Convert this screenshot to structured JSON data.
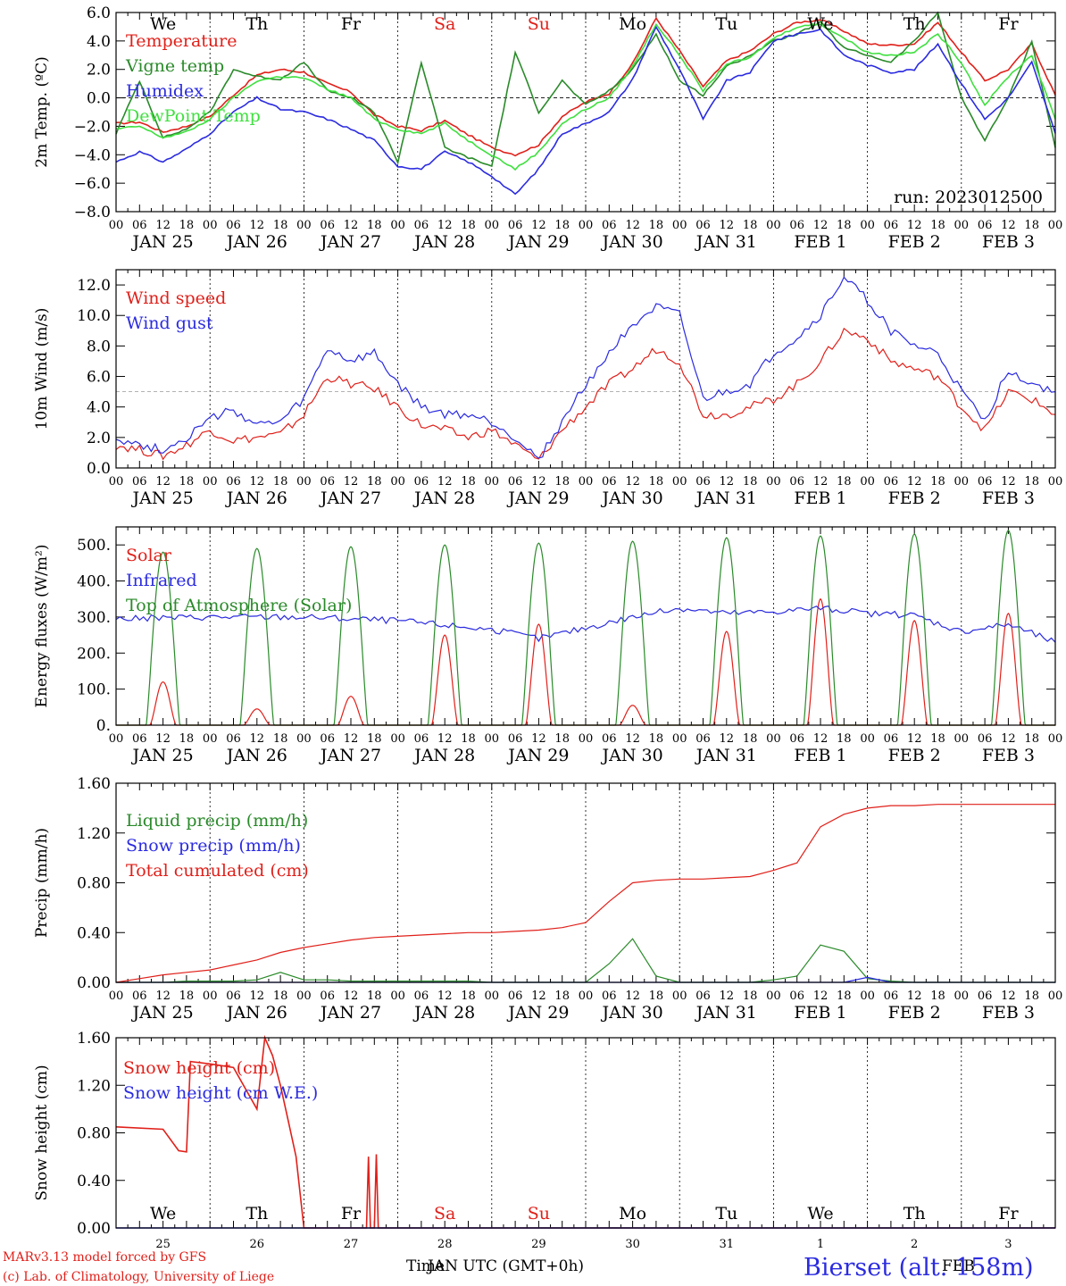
{
  "axis": {
    "hour_labels": [
      "00",
      "06",
      "12",
      "18"
    ],
    "final_hour_label": "00",
    "date_labels": [
      "JAN 25",
      "JAN 26",
      "JAN 27",
      "JAN 28",
      "JAN 29",
      "JAN 30",
      "JAN 31",
      "FEB  1",
      "FEB  2",
      "FEB  3"
    ],
    "weekday_labels": [
      "We",
      "Th",
      "Fr",
      "Sa",
      "Su",
      "Mo",
      "Tu",
      "We",
      "Th",
      "Fr"
    ],
    "weekend_color": "#e0201a",
    "weekday_color": "#000000",
    "day_numbers": [
      "25",
      "26",
      "27",
      "28",
      "29",
      "30",
      "31",
      "1",
      "2",
      "3"
    ],
    "bottom_xlabel": "Time",
    "bottom_xlabel_overlap": "JAN UTC (GMT+0h)",
    "bottom_month_feb": "FEB"
  },
  "footer": {
    "credit_line1": "MARv3.13 model forced by GFS",
    "credit_line2": "(c) Lab. of Climatology, University of Liege",
    "station": "Bierset (alt. 158m)"
  },
  "chart_data": [
    {
      "type": "line",
      "ylabel": "2m Temp. (ºC)",
      "ylim": [
        -8,
        6
      ],
      "yticks": [
        "6.0",
        "4.0",
        "2.0",
        "0.0",
        "−2.0",
        "−4.0",
        "−6.0",
        "−8.0"
      ],
      "reference_line": 0,
      "annotation": "run: 2023012500",
      "x_hours": [
        0,
        6,
        12,
        18,
        24,
        30,
        36,
        42,
        48,
        54,
        60,
        66,
        72,
        78,
        84,
        90,
        96,
        102,
        108,
        114,
        120,
        126,
        132,
        138,
        144,
        150,
        156,
        162,
        168,
        174,
        180,
        186,
        192,
        198,
        204,
        210,
        216,
        222,
        228,
        234,
        240
      ],
      "series": [
        {
          "name": "Temperature",
          "color": "#e0201a",
          "values": [
            -1.8,
            -1.7,
            -2.4,
            -2.0,
            -1.3,
            0.2,
            1.6,
            2.0,
            1.8,
            1.0,
            0.4,
            -1.2,
            -2.0,
            -2.3,
            -1.6,
            -2.6,
            -3.5,
            -4.0,
            -3.3,
            -1.3,
            -0.3,
            0.3,
            2.4,
            5.6,
            3.3,
            0.8,
            2.6,
            3.3,
            4.5,
            5.3,
            5.5,
            4.7,
            3.8,
            3.7,
            3.8,
            5.3,
            3.2,
            1.2,
            2.0,
            3.8,
            0.2
          ]
        },
        {
          "name": "Vigne temp",
          "color": "#2a8a2a",
          "values": [
            -2.5,
            1.2,
            -2.8,
            -2.2,
            -1.0,
            2.0,
            1.5,
            1.3,
            2.5,
            0.5,
            0.0,
            -1.0,
            -4.5,
            2.5,
            -3.5,
            -4.2,
            -4.8,
            3.2,
            -1.0,
            1.2,
            -0.5,
            0.5,
            2.0,
            4.5,
            1.2,
            0.2,
            2.2,
            3.0,
            4.0,
            4.5,
            5.3,
            3.5,
            3.0,
            2.5,
            4.0,
            6.0,
            0.0,
            -3.0,
            0.0,
            4.0,
            -3.5
          ]
        },
        {
          "name": "Humidex",
          "color": "#2b2be0",
          "values": [
            -4.5,
            -3.8,
            -4.5,
            -3.6,
            -2.5,
            -1.0,
            0.0,
            -0.8,
            -1.0,
            -1.5,
            -2.2,
            -3.0,
            -4.8,
            -5.0,
            -3.8,
            -4.5,
            -5.5,
            -6.8,
            -5.0,
            -2.5,
            -1.8,
            -1.0,
            1.3,
            5.0,
            2.0,
            -1.5,
            1.2,
            1.8,
            4.0,
            4.5,
            4.8,
            3.0,
            2.3,
            1.8,
            2.0,
            3.8,
            1.0,
            -1.5,
            0.0,
            2.5,
            -2.5
          ]
        },
        {
          "name": "DewPoint Temp",
          "color": "#3fe03f",
          "values": [
            -2.2,
            -2.0,
            -2.8,
            -2.4,
            -1.5,
            0.0,
            1.2,
            1.5,
            1.4,
            0.6,
            0.0,
            -1.5,
            -2.2,
            -2.5,
            -1.8,
            -3.0,
            -4.0,
            -5.0,
            -3.8,
            -1.8,
            -0.8,
            0.0,
            2.2,
            5.2,
            3.0,
            0.5,
            2.4,
            2.8,
            4.2,
            5.0,
            5.2,
            4.2,
            3.2,
            3.0,
            3.2,
            4.5,
            2.5,
            -0.5,
            1.5,
            3.0,
            -1.5
          ]
        }
      ]
    },
    {
      "type": "line",
      "ylabel": "10m Wind (m/s)",
      "ylim": [
        0,
        13
      ],
      "yticks": [
        "12.0",
        "10.0",
        "8.0",
        "6.0",
        "4.0",
        "2.0",
        "0.0"
      ],
      "reference_line": 5,
      "x_hours": [
        0,
        6,
        12,
        18,
        24,
        30,
        36,
        42,
        48,
        54,
        60,
        66,
        72,
        78,
        84,
        90,
        96,
        102,
        108,
        114,
        120,
        126,
        132,
        138,
        144,
        150,
        156,
        162,
        168,
        174,
        180,
        186,
        192,
        198,
        204,
        210,
        216,
        222,
        228,
        234,
        240
      ],
      "series": [
        {
          "name": "Wind speed",
          "color": "#e0201a",
          "values": [
            1.5,
            1.2,
            0.8,
            1.5,
            2.5,
            1.8,
            2.0,
            2.2,
            3.5,
            6.0,
            5.5,
            5.2,
            4.0,
            2.8,
            2.5,
            2.0,
            2.5,
            1.5,
            0.5,
            2.5,
            4.0,
            5.5,
            6.5,
            7.8,
            7.0,
            3.5,
            3.5,
            4.0,
            4.5,
            5.5,
            7.0,
            9.0,
            8.5,
            7.0,
            6.5,
            6.0,
            4.0,
            2.5,
            5.0,
            4.5,
            3.5
          ]
        },
        {
          "name": "Wind gust",
          "color": "#2b2be0",
          "values": [
            2.0,
            1.5,
            1.2,
            2.0,
            3.2,
            3.8,
            2.8,
            3.0,
            4.5,
            7.8,
            7.0,
            7.5,
            5.5,
            4.0,
            3.5,
            3.5,
            3.0,
            2.0,
            0.6,
            3.0,
            5.5,
            7.5,
            9.5,
            10.5,
            10.0,
            4.5,
            5.0,
            5.5,
            7.5,
            8.5,
            10.0,
            12.5,
            11.0,
            9.0,
            8.0,
            7.5,
            5.0,
            3.0,
            6.5,
            5.5,
            5.0
          ]
        }
      ]
    },
    {
      "type": "line",
      "ylabel": "Energy fluxes (W/m²)",
      "ylim": [
        0,
        550
      ],
      "yticks": [
        "500.",
        "400.",
        "300.",
        "200.",
        "100.",
        "0."
      ],
      "series": [
        {
          "name": "Solar",
          "color": "#e0201a",
          "peaks": [
            120,
            45,
            80,
            250,
            280,
            55,
            260,
            350,
            290,
            310
          ]
        },
        {
          "name": "Infrared",
          "color": "#2b2be0",
          "x_hours": [
            0,
            24,
            48,
            72,
            96,
            108,
            120,
            132,
            144,
            156,
            168,
            180,
            192,
            204,
            216,
            228,
            240
          ],
          "values": [
            295,
            300,
            300,
            290,
            265,
            240,
            270,
            300,
            325,
            310,
            315,
            325,
            310,
            305,
            260,
            280,
            230
          ]
        },
        {
          "name": "Top of Atmosphere (Solar)",
          "color": "#2a8a2a",
          "peaks": [
            480,
            490,
            495,
            500,
            505,
            510,
            520,
            525,
            530,
            540
          ]
        }
      ]
    },
    {
      "type": "line",
      "ylabel": "Precip (mm/h)",
      "ylim": [
        0,
        1.6
      ],
      "yticks": [
        "1.60",
        "1.20",
        "0.80",
        "0.40",
        "0.00"
      ],
      "x_hours": [
        0,
        6,
        12,
        18,
        24,
        30,
        36,
        42,
        48,
        54,
        60,
        66,
        72,
        78,
        84,
        90,
        96,
        102,
        108,
        114,
        120,
        126,
        132,
        138,
        144,
        150,
        156,
        162,
        168,
        174,
        180,
        186,
        192,
        198,
        204,
        210,
        216,
        222,
        228,
        234,
        240
      ],
      "series": [
        {
          "name": "Liquid precip (mm/h)",
          "color": "#2a8a2a",
          "values": [
            0,
            0,
            0,
            0.01,
            0.01,
            0.01,
            0.02,
            0.08,
            0.02,
            0.02,
            0.01,
            0.01,
            0.01,
            0.01,
            0.01,
            0.01,
            0,
            0,
            0,
            0,
            0,
            0.15,
            0.35,
            0.05,
            0,
            0,
            0,
            0,
            0.02,
            0.05,
            0.3,
            0.25,
            0.03,
            0.01,
            0,
            0,
            0,
            0,
            0,
            0,
            0
          ]
        },
        {
          "name": "Snow precip (mm/h)",
          "color": "#2b2be0",
          "values": [
            0,
            0,
            0,
            0,
            0,
            0,
            0,
            0,
            0,
            0,
            0,
            0,
            0,
            0,
            0,
            0,
            0,
            0,
            0,
            0,
            0,
            0,
            0,
            0,
            0,
            0,
            0,
            0,
            0,
            0,
            0,
            0,
            0.04,
            0,
            0,
            0,
            0,
            0,
            0,
            0,
            0
          ]
        },
        {
          "name": "Total cumulated (cm)",
          "color": "#e0201a",
          "values": [
            0,
            0.03,
            0.06,
            0.08,
            0.1,
            0.14,
            0.18,
            0.24,
            0.28,
            0.31,
            0.34,
            0.36,
            0.37,
            0.38,
            0.39,
            0.4,
            0.4,
            0.41,
            0.42,
            0.44,
            0.48,
            0.65,
            0.8,
            0.82,
            0.83,
            0.83,
            0.84,
            0.85,
            0.9,
            0.96,
            1.25,
            1.35,
            1.4,
            1.42,
            1.42,
            1.43,
            1.43,
            1.43,
            1.43,
            1.43,
            1.43
          ]
        }
      ]
    },
    {
      "type": "line",
      "ylabel": "Snow height (cm)",
      "ylim": [
        0,
        1.6
      ],
      "yticks": [
        "1.60",
        "1.20",
        "0.80",
        "0.40",
        "0.00"
      ],
      "series": [
        {
          "name": "Snow height (cm)",
          "color": "#e0201a",
          "x_hours": [
            0,
            12,
            16,
            18,
            19,
            24,
            30,
            36,
            38,
            40,
            42,
            44,
            46,
            48,
            48.5,
            64,
            64.5,
            65,
            66,
            66.5,
            67,
            240
          ],
          "values": [
            0.85,
            0.83,
            0.65,
            0.64,
            1.4,
            1.38,
            1.35,
            1.0,
            1.6,
            1.45,
            1.2,
            0.9,
            0.6,
            0,
            0,
            0,
            0.6,
            0,
            0,
            0.62,
            0,
            0
          ]
        },
        {
          "name": "Snow height (cm W.E.)",
          "color": "#2b2be0",
          "x_hours": [
            0,
            240
          ],
          "values": [
            0,
            0
          ]
        }
      ]
    }
  ]
}
